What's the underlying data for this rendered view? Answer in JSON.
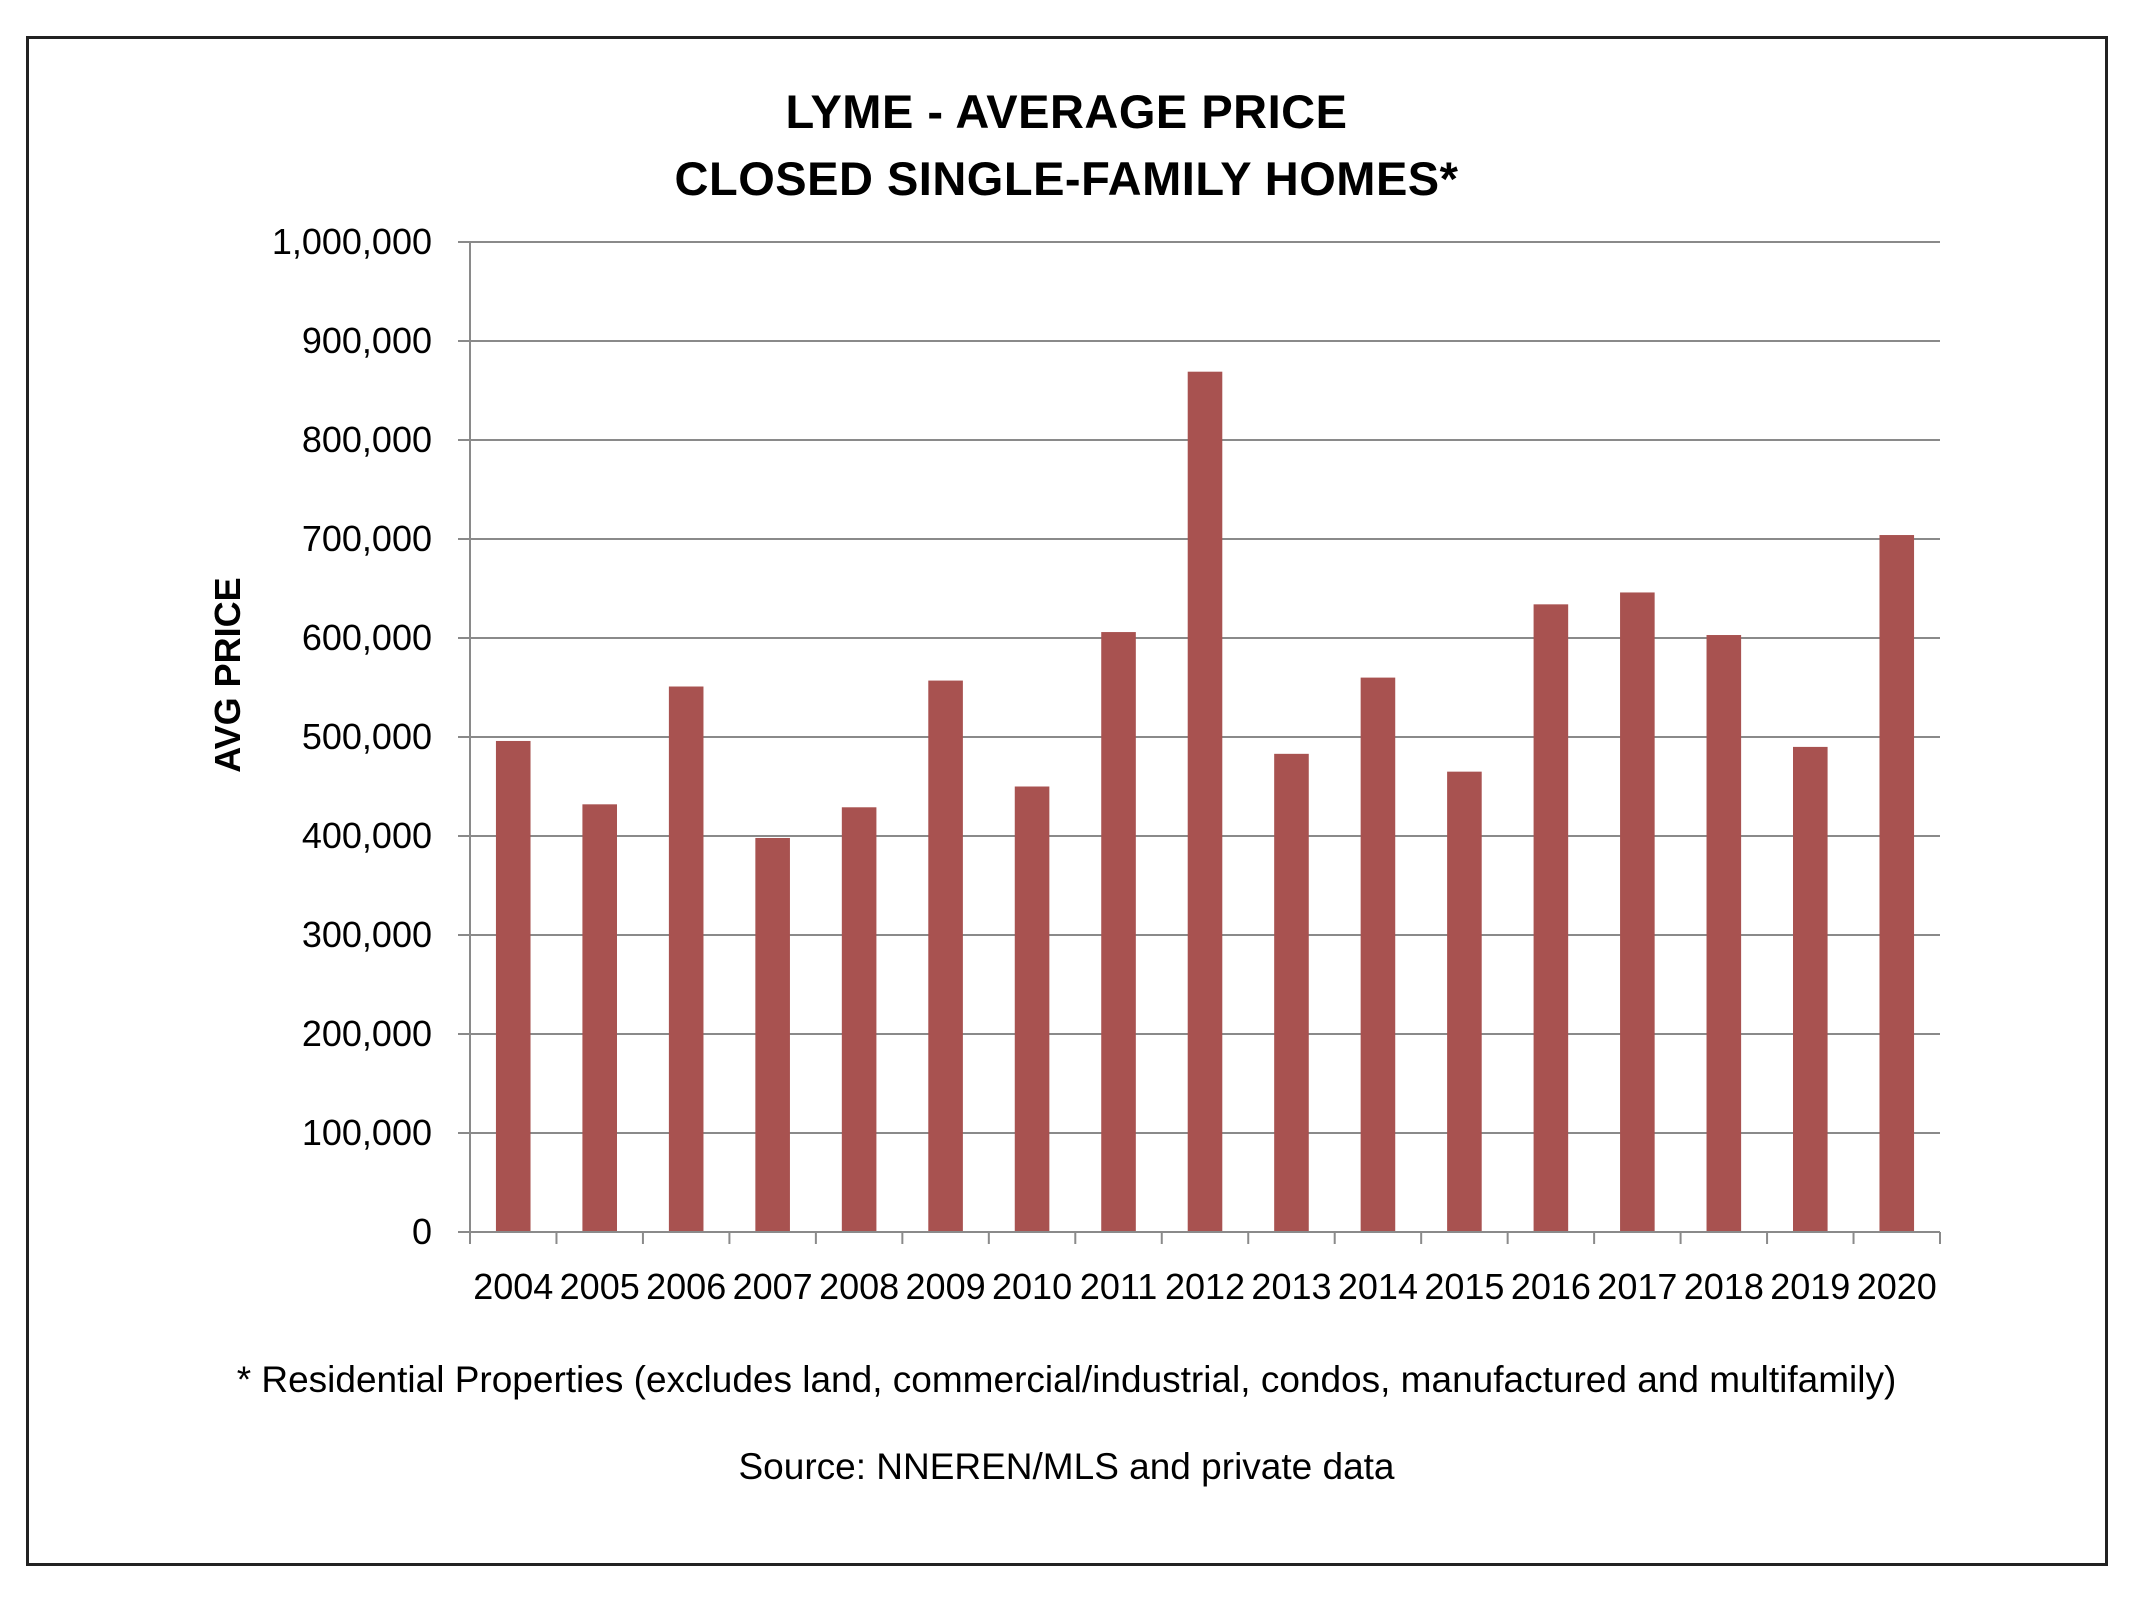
{
  "chart_data": {
    "type": "bar",
    "title": [
      "LYME - AVERAGE PRICE",
      "CLOSED SINGLE-FAMILY HOMES*"
    ],
    "xlabel": "",
    "ylabel": "AVG PRICE",
    "ylim": [
      0,
      1000000
    ],
    "ytick_step": 100000,
    "yticks": [
      "0",
      "100,000",
      "200,000",
      "300,000",
      "400,000",
      "500,000",
      "600,000",
      "700,000",
      "800,000",
      "900,000",
      "1,000,000"
    ],
    "categories": [
      "2004",
      "2005",
      "2006",
      "2007",
      "2008",
      "2009",
      "2010",
      "2011",
      "2012",
      "2013",
      "2014",
      "2015",
      "2016",
      "2017",
      "2018",
      "2019",
      "2020"
    ],
    "values": [
      496000,
      432000,
      551000,
      398000,
      429000,
      557000,
      450000,
      606000,
      869000,
      483000,
      560000,
      465000,
      634000,
      646000,
      603000,
      490000,
      704000
    ],
    "bar_color": "#A85250",
    "grid": true,
    "legend": "none"
  },
  "footnotes": {
    "note": "* Residential Properties (excludes land, commercial/industrial, condos, manufactured and multifamily)",
    "source": "Source: NNEREN/MLS and private data"
  }
}
